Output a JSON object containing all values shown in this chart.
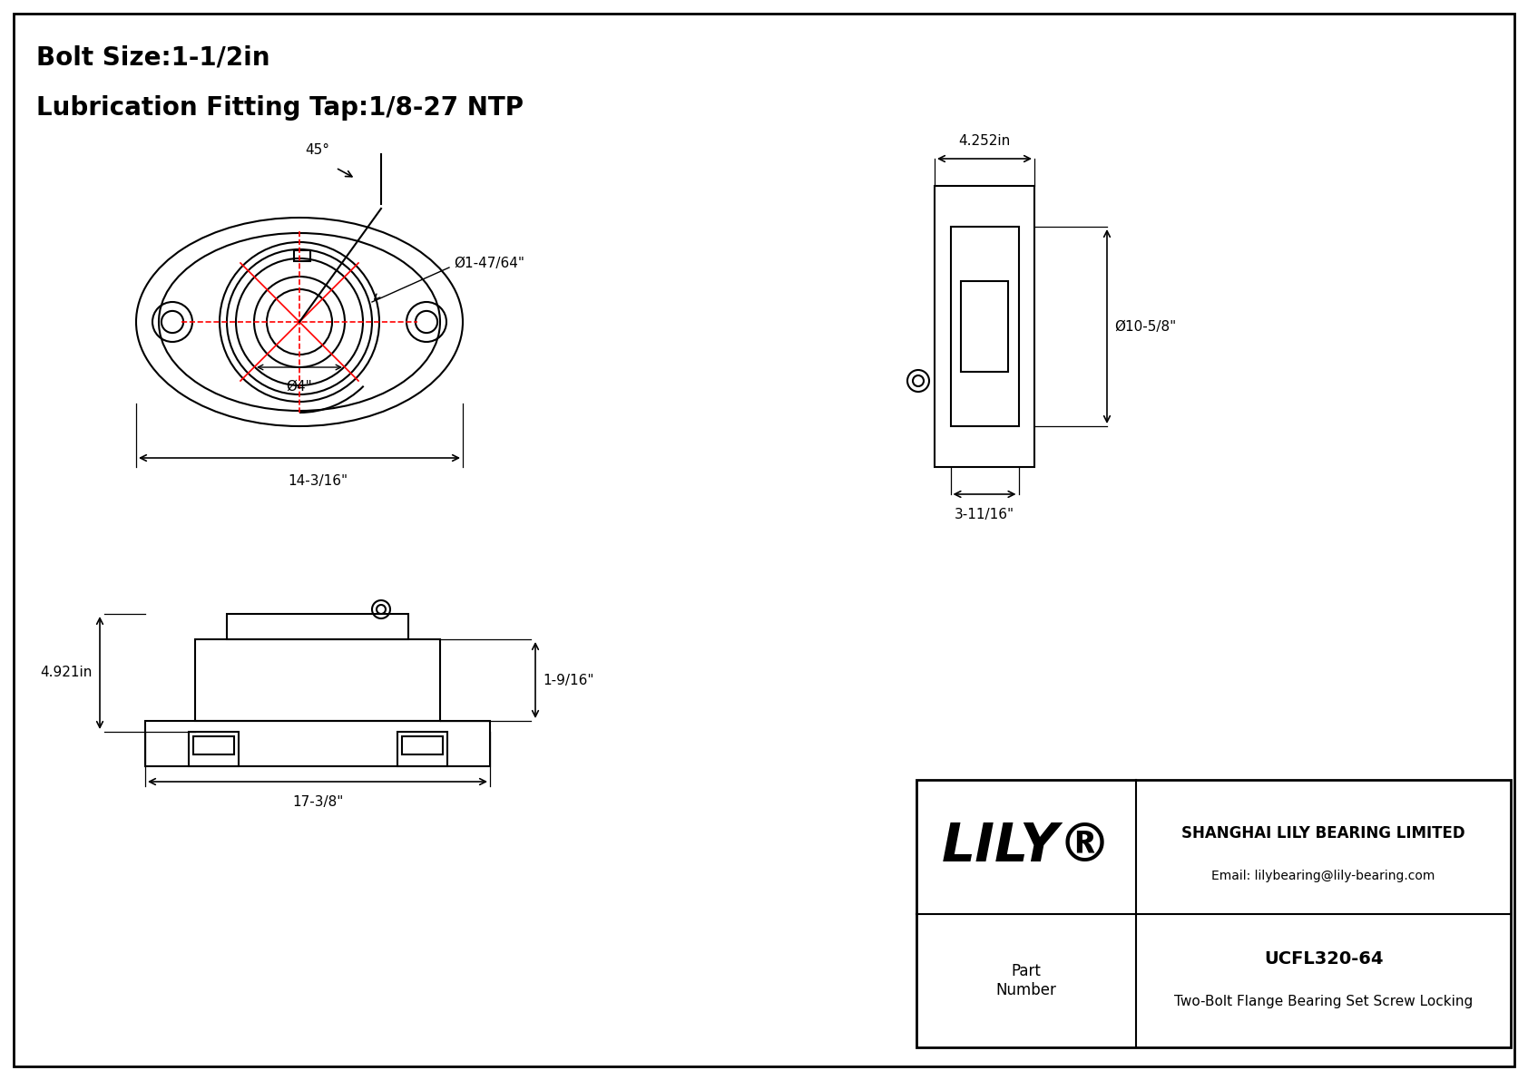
{
  "bg_color": "#ffffff",
  "line_color": "#000000",
  "red_color": "#ff0000",
  "title_line1": "Bolt Size:1-1/2in",
  "title_line2": "Lubrication Fitting Tap:1/8-27 NTP",
  "front_view": {
    "label_45": "45°",
    "label_dia_bearing": "Ø1-47/64\"",
    "label_dia_base": "Ø4\"",
    "label_width": "14-3/16\""
  },
  "side_view": {
    "label_top_width": "4.252in",
    "label_height": "Ø10-5/8\"",
    "label_bottom_width": "3-11/16\""
  },
  "bottom_view": {
    "label_height": "4.921in",
    "label_height2": "1-9/16\"",
    "label_width": "17-3/8\""
  },
  "title_block": {
    "company": "SHANGHAI LILY BEARING LIMITED",
    "email": "Email: lilybearing@lily-bearing.com",
    "part_number": "UCFL320-64",
    "description": "Two-Bolt Flange Bearing Set Screw Locking",
    "brand": "LILY"
  },
  "font_size_title": 20,
  "font_size_dim": 11,
  "font_size_brand": 42
}
